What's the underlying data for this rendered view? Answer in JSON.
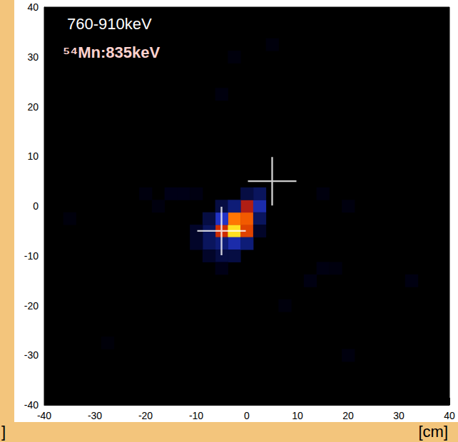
{
  "chart_data": {
    "type": "heatmap",
    "annotations": [
      "760-910keV",
      "⁵⁴Mn:835keV"
    ],
    "xlabel": "[cm]",
    "ylabel": "]",
    "xlim": [
      -40,
      40
    ],
    "ylim": [
      -40,
      40
    ],
    "xticks": [
      -40,
      -30,
      -20,
      -10,
      0,
      10,
      20,
      30,
      40
    ],
    "yticks": [
      -40,
      -30,
      -20,
      -10,
      0,
      10,
      20,
      30,
      40
    ],
    "grid": false,
    "cell_size": 2.5,
    "zlim": [
      0,
      1
    ],
    "cells": [
      [
        -5,
        -5,
        0.7
      ],
      [
        -2.5,
        -5,
        1.0
      ],
      [
        0,
        -5,
        0.75
      ],
      [
        -2.5,
        -2.5,
        0.85
      ],
      [
        0,
        -2.5,
        0.8
      ],
      [
        0,
        0,
        0.65
      ],
      [
        2.5,
        0,
        0.45
      ],
      [
        -5,
        -2.5,
        0.5
      ],
      [
        -2.5,
        -7.5,
        0.45
      ],
      [
        -5,
        -7.5,
        0.35
      ],
      [
        2.5,
        2.5,
        0.3
      ],
      [
        -7.5,
        -5,
        0.3
      ],
      [
        -7.5,
        -7.5,
        0.3
      ],
      [
        -7.5,
        -2.5,
        0.25
      ],
      [
        -5,
        0,
        0.25
      ],
      [
        -2.5,
        0,
        0.35
      ],
      [
        -5,
        -10,
        0.25
      ],
      [
        -2.5,
        -10,
        0.25
      ],
      [
        -7.5,
        -10,
        0.2
      ],
      [
        0,
        -7.5,
        0.35
      ],
      [
        2.5,
        -2.5,
        0.3
      ],
      [
        2.5,
        -5,
        0.2
      ],
      [
        0,
        2.5,
        0.25
      ],
      [
        -10,
        -5,
        0.2
      ],
      [
        -10,
        -7.5,
        0.2
      ],
      [
        -5,
        -12.5,
        0.15
      ],
      [
        -12.5,
        2.5,
        0.15
      ],
      [
        -15,
        2.5,
        0.15
      ],
      [
        -17.5,
        0,
        0.1
      ],
      [
        -10,
        2.5,
        0.12
      ],
      [
        -20,
        2.5,
        0.1
      ],
      [
        -5,
        22.5,
        0.1
      ],
      [
        -2.5,
        30,
        0.08
      ],
      [
        15,
        2.5,
        0.1
      ],
      [
        20,
        0,
        0.1
      ],
      [
        15,
        -12.5,
        0.12
      ],
      [
        12.5,
        -15,
        0.12
      ],
      [
        17.5,
        -12.5,
        0.1
      ],
      [
        32.5,
        -15,
        0.12
      ],
      [
        20,
        -30,
        0.1
      ],
      [
        7.5,
        -20,
        0.08
      ],
      [
        5,
        32.5,
        0.08
      ],
      [
        -35,
        -2.5,
        0.08
      ],
      [
        -27.5,
        -27.5,
        0.06
      ]
    ],
    "series": [
      {
        "type": "scatter",
        "marker": "cross",
        "color": "#ffffff",
        "x": [
          -5,
          5
        ],
        "values": [
          -5,
          5
        ]
      }
    ]
  }
}
